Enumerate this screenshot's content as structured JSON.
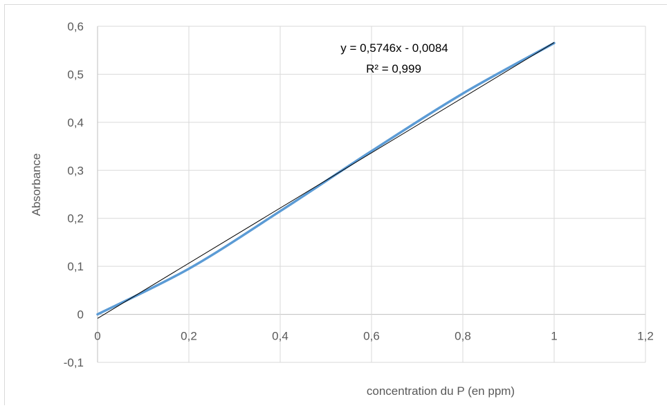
{
  "chart_data": {
    "type": "scatter",
    "xlabel": "concentration du P (en ppm)",
    "ylabel": "Absorbance",
    "xlim": [
      0,
      1.2
    ],
    "ylim": [
      -0.1,
      0.6
    ],
    "x_ticks": [
      "0",
      "0,2",
      "0,4",
      "0,6",
      "0,8",
      "1",
      "1,2"
    ],
    "y_ticks": [
      "-0,1",
      "0",
      "0,1",
      "0,2",
      "0,3",
      "0,4",
      "0,5",
      "0,6"
    ],
    "x_tick_values": [
      0,
      0.2,
      0.4,
      0.6,
      0.8,
      1.0,
      1.2
    ],
    "y_tick_values": [
      -0.1,
      0,
      0.1,
      0.2,
      0.3,
      0.4,
      0.5,
      0.6
    ],
    "grid": true,
    "series": [
      {
        "x": [
          0,
          0.2,
          0.4,
          0.6,
          0.8,
          1.0
        ],
        "y": [
          0.0,
          0.095,
          0.215,
          0.34,
          0.46,
          0.565
        ],
        "color": "#5b9bd5",
        "style": "smooth-line"
      }
    ],
    "trendline": {
      "slope": 0.5746,
      "intercept": -0.0084,
      "x_range": [
        0,
        1.0
      ],
      "color": "#000000",
      "equation": "y = 0,5746x - 0,0084",
      "r_squared": "R² = 0,999"
    }
  }
}
